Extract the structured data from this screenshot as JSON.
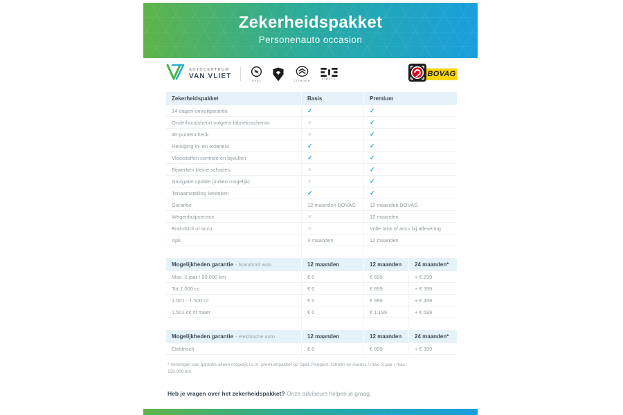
{
  "banner": {
    "title": "Zekerheidspakket",
    "subtitle": "Personenauto occasion"
  },
  "logos": {
    "dealer_line1": "AUTOCENTRUM",
    "dealer_line2": "VAN VLIET",
    "brands": [
      "Opel",
      "Peugeot",
      "Citroën",
      "Aiways"
    ],
    "opel_caption": "OPEL",
    "citroen_caption": "CITROËN",
    "aiways_caption": "AIWAYS",
    "bovag_label": "BOVAG"
  },
  "colors": {
    "gradient_green": "#5fb449",
    "gradient_teal": "#2aab9d",
    "gradient_blue": "#199fdd",
    "check_blue": "#29a9de",
    "cross_gray": "#c7cfd5",
    "header_bg": "#e6f2f9",
    "dark_text": "#3d4b55",
    "bovag_yellow": "#fed501",
    "bovag_red": "#d5001f"
  },
  "package_table": {
    "headers": [
      "Zekerheidspakket",
      "Basis",
      "Premium"
    ],
    "rows": [
      [
        "14 dagen omruilgarantie",
        "CHECK",
        "CHECK"
      ],
      [
        "Onderhoudsbeurt volgens fabrieksschema",
        "CROSS",
        "CHECK"
      ],
      [
        "40-puntencheck",
        "CROSS",
        "CHECK"
      ],
      [
        "Reiniging in- en exterieur",
        "CHECK",
        "CHECK"
      ],
      [
        "Vloeistoffen controle en bijvullen",
        "CHECK",
        "CHECK"
      ],
      [
        "Bijwerken kleine schades",
        "CROSS",
        "CHECK"
      ],
      [
        "Navigatie update (indien mogelijk)",
        "CROSS",
        "CHECK"
      ],
      [
        "Tenaamstelling kenteken",
        "CHECK",
        "CHECK"
      ],
      [
        "Garantie",
        "12 maanden BOVAG",
        "12 maanden BOVAG"
      ],
      [
        "Wegenhulpservice",
        "CROSS",
        "12 maanden"
      ],
      [
        "Brandstof of accu",
        "CROSS",
        "Volle tank of accu bij aflevering"
      ],
      [
        "Apk",
        "3 maanden",
        "12 maanden"
      ]
    ]
  },
  "fuel_table": {
    "title_bold": "Mogelijkheden garantie",
    "title_light": "- brandstof auto",
    "headers": [
      "12 maanden",
      "12 maanden",
      "24 maanden*"
    ],
    "rows": [
      [
        "Max. 2 jaar / 50.000 km",
        "€ 0",
        "€ 699",
        "+ € 299"
      ],
      [
        "Tot 1.000 cc",
        "€ 0",
        "€ 899",
        "+ € 399"
      ],
      [
        "1.001 - 1.500 cc",
        "€ 0",
        "€ 999",
        "+ € 499"
      ],
      [
        "1.501 cc of meer",
        "€ 0",
        "€ 1.199",
        "+ € 599"
      ]
    ]
  },
  "electric_table": {
    "title_bold": "Mogelijkheden garantie",
    "title_light": "- elektrische auto",
    "headers": [
      "12 maanden",
      "12 maanden",
      "24 maanden*"
    ],
    "rows": [
      [
        "Elektrisch",
        "€ 0",
        "€ 899",
        "+ € 399"
      ]
    ]
  },
  "footnote": {
    "line1": "* Verlengen van garantie alleen mogelijk i.c.m. premiumpakket op Opel, Peugeot, Citroën en Aiways / max. 8 jaar / max.",
    "line2": "150.000 km."
  },
  "question": {
    "bold": "Heb je vragen over het zekerheidspakket?",
    "rest": " Onze adviseurs helpen je graag."
  }
}
